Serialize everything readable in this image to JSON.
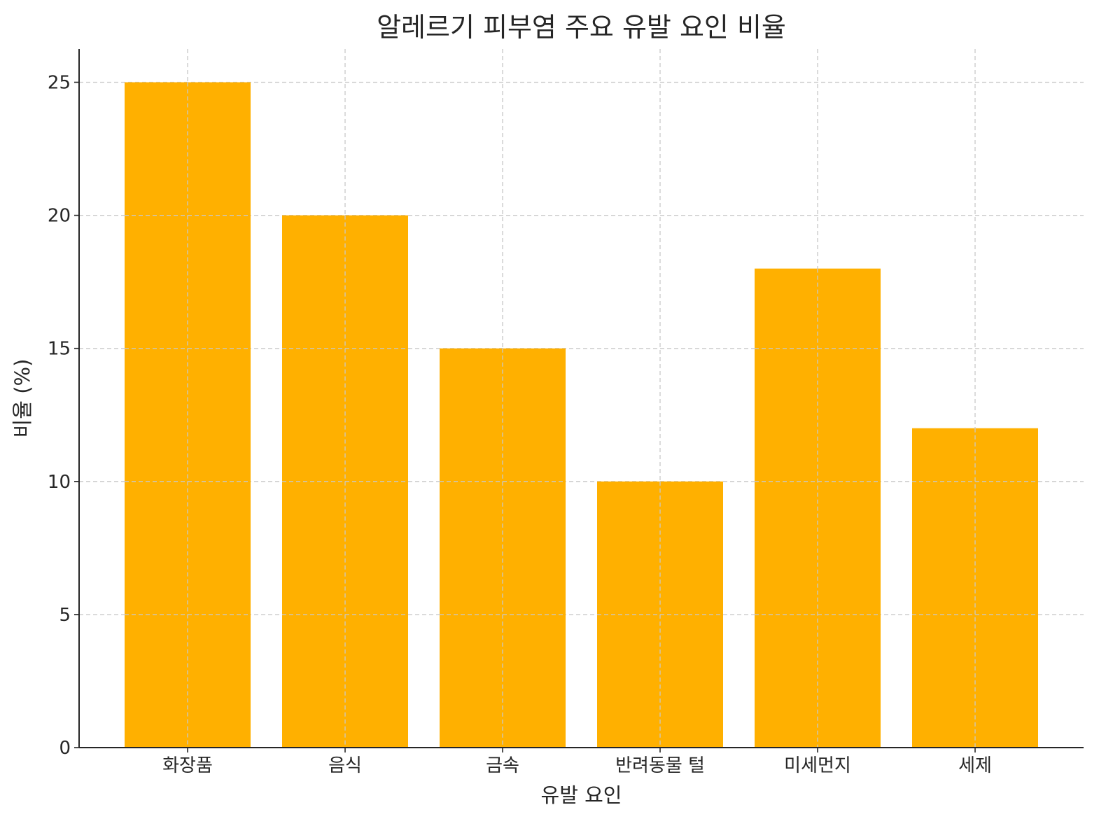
{
  "chart_data": {
    "type": "bar",
    "title": "알레르기 피부염 주요 유발 요인 비율",
    "xlabel": "유발 요인",
    "ylabel": "비율 (%)",
    "categories": [
      "화장품",
      "음식",
      "금속",
      "반려동물 털",
      "미세먼지",
      "세제"
    ],
    "values": [
      25,
      20,
      15,
      10,
      18,
      12
    ],
    "ylim": [
      0,
      26.25
    ],
    "yticks": [
      0,
      5,
      10,
      15,
      20,
      25
    ],
    "bar_color": "#FFB000",
    "grid": true,
    "legend": false
  }
}
